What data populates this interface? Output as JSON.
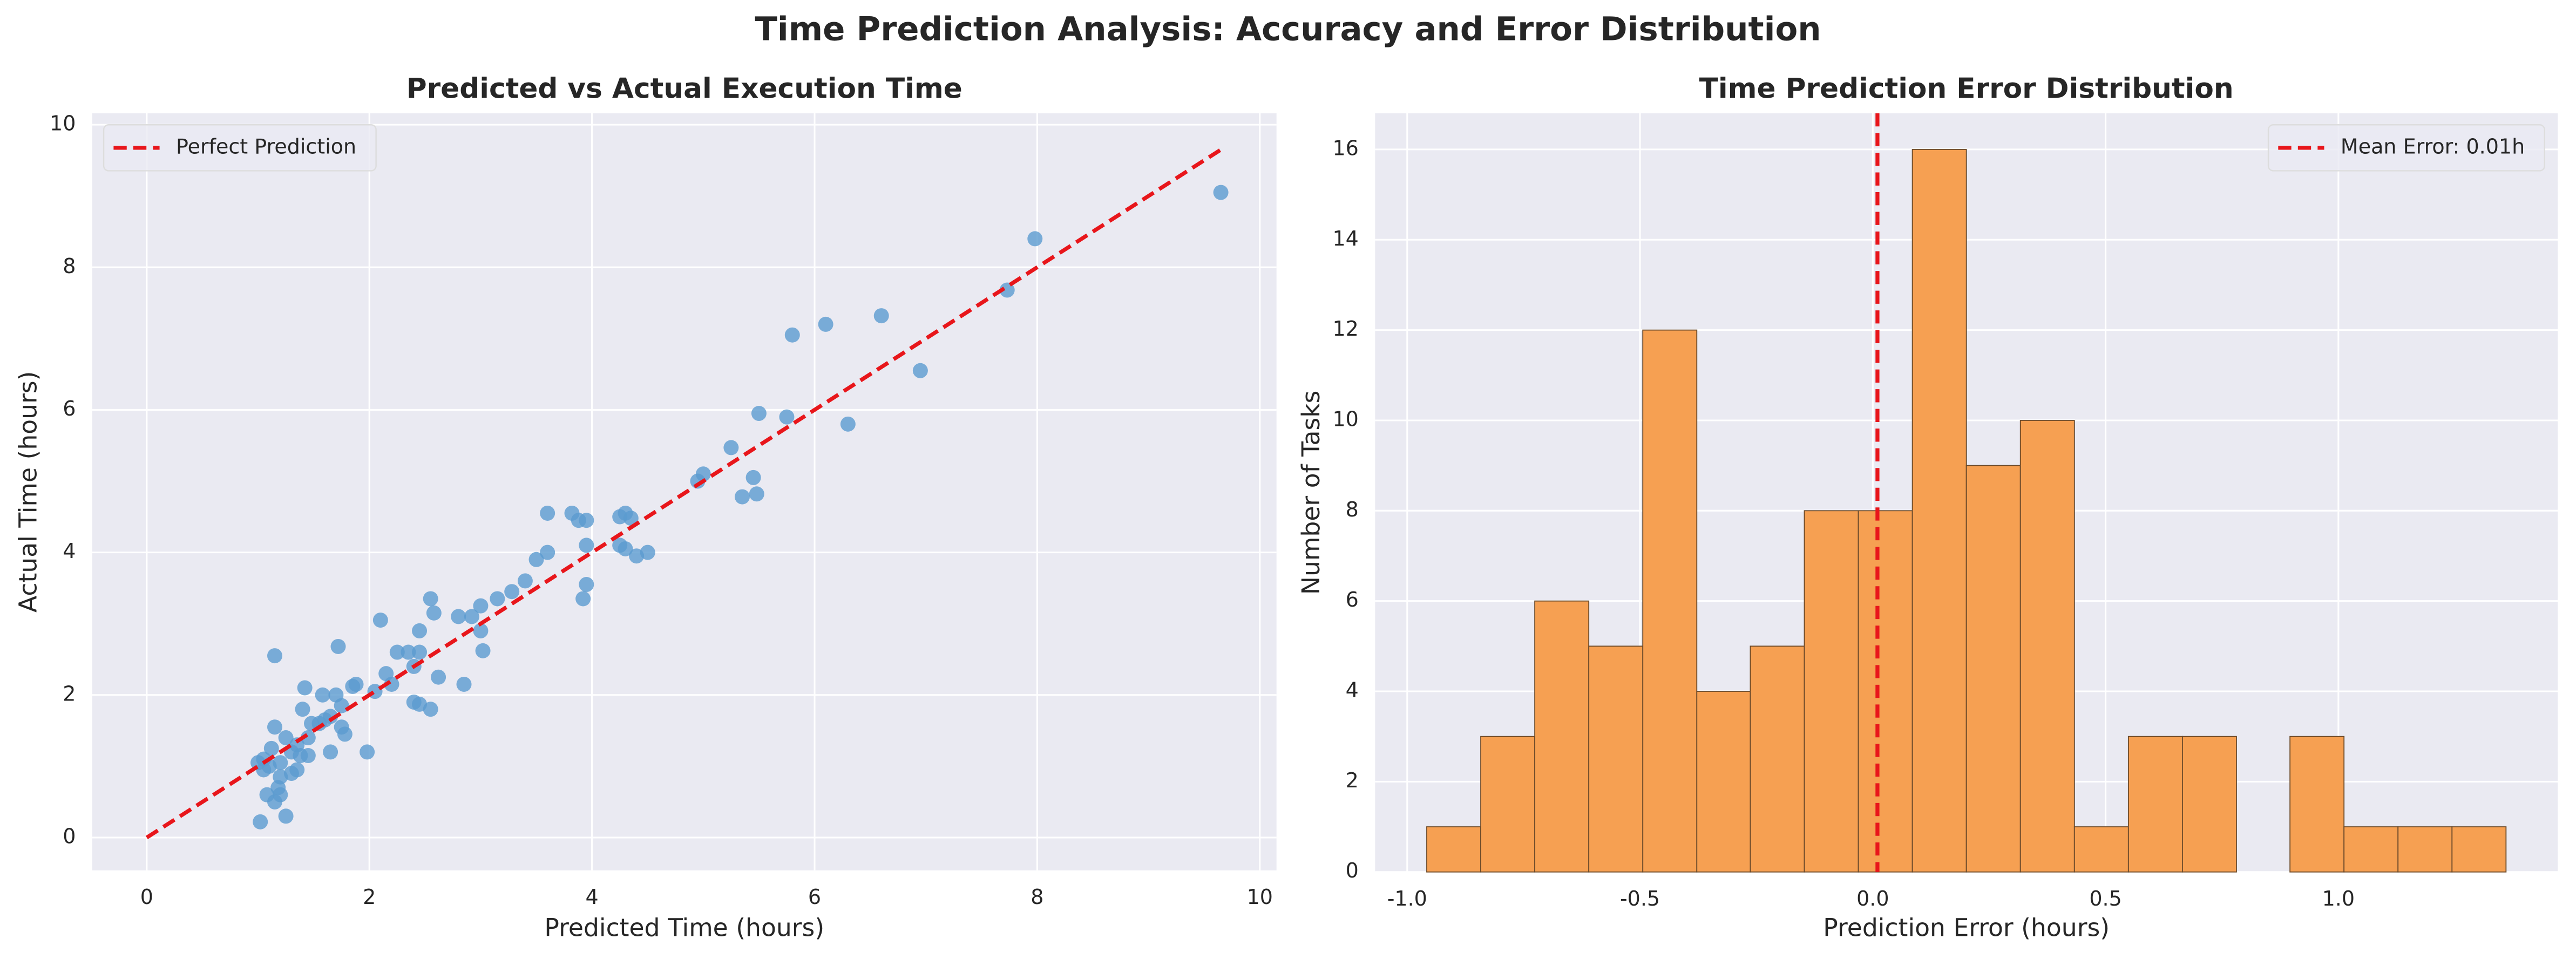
{
  "title": "Time Prediction Analysis: Accuracy and Error Distribution",
  "chart_data": [
    {
      "type": "scatter",
      "title": "Predicted vs Actual Execution Time",
      "xlabel": "Predicted Time (hours)",
      "ylabel": "Actual Time (hours)",
      "x": [
        9.65,
        7.98,
        7.73,
        6.6,
        6.1,
        5.8,
        6.95,
        6.3,
        5.75,
        5.5,
        5.25,
        5.0,
        4.95,
        5.45,
        5.35,
        5.48,
        3.6,
        3.82,
        3.88,
        3.95,
        4.25,
        4.3,
        4.35,
        4.5,
        4.4,
        4.25,
        4.3,
        3.95,
        3.6,
        3.5,
        3.4,
        3.28,
        3.15,
        3.95,
        3.92,
        3.0,
        2.92,
        2.8,
        3.0,
        3.02,
        2.85,
        2.55,
        2.58,
        2.45,
        2.35,
        2.4,
        2.45,
        2.25,
        2.1,
        2.15,
        2.2,
        2.05,
        2.4,
        2.45,
        2.55,
        2.62,
        1.98,
        1.88,
        1.85,
        1.72,
        1.75,
        1.7,
        1.65,
        1.75,
        1.78,
        1.6,
        1.55,
        1.65,
        1.58,
        1.48,
        1.42,
        1.4,
        1.45,
        1.38,
        1.45,
        1.3,
        1.35,
        1.3,
        1.25,
        1.2,
        1.18,
        1.2,
        1.25,
        1.15,
        1.15,
        1.12,
        1.1,
        1.05,
        1.05,
        1.0,
        1.08,
        1.15,
        1.02,
        1.2,
        1.35
      ],
      "values": [
        9.05,
        8.4,
        7.68,
        7.32,
        7.2,
        7.05,
        6.55,
        5.8,
        5.9,
        5.95,
        5.47,
        5.1,
        5.0,
        5.05,
        4.78,
        4.82,
        4.55,
        4.55,
        4.45,
        4.45,
        4.5,
        4.55,
        4.48,
        4.0,
        3.95,
        4.1,
        4.05,
        4.1,
        4.0,
        3.9,
        3.6,
        3.45,
        3.35,
        3.55,
        3.35,
        3.25,
        3.1,
        3.1,
        2.9,
        2.62,
        2.15,
        3.35,
        3.15,
        2.9,
        2.6,
        2.4,
        2.6,
        2.6,
        3.05,
        2.3,
        2.15,
        2.05,
        1.9,
        1.87,
        1.8,
        2.25,
        1.2,
        2.15,
        2.12,
        2.68,
        1.85,
        2.0,
        1.7,
        1.55,
        1.45,
        1.65,
        1.6,
        1.2,
        2.0,
        1.6,
        2.1,
        1.8,
        1.4,
        1.15,
        1.15,
        1.2,
        0.95,
        0.9,
        1.4,
        0.85,
        0.7,
        0.6,
        0.3,
        1.55,
        2.55,
        1.25,
        1.0,
        1.1,
        0.95,
        1.05,
        0.6,
        0.5,
        0.22,
        1.05,
        1.3
      ],
      "color": "#5b9bd0",
      "xlim": [
        -0.49,
        10.15
      ],
      "ylim": [
        -0.46,
        10.16
      ],
      "xticks": [
        0,
        2,
        4,
        6,
        8,
        10
      ],
      "yticks": [
        0,
        2,
        4,
        6,
        8,
        10
      ],
      "grid": true,
      "legend": "upper left",
      "reference_line": {
        "name": "Perfect Prediction",
        "x": [
          0,
          9.65
        ],
        "values": [
          0,
          9.65
        ],
        "color": "#e8161b"
      }
    },
    {
      "type": "histogram",
      "title": "Time Prediction Error Distribution",
      "xlabel": "Prediction Error (hours)",
      "ylabel": "Number of Tasks",
      "bins": [
        -0.958,
        -0.842,
        -0.726,
        -0.61,
        -0.494,
        -0.378,
        -0.263,
        -0.147,
        -0.031,
        0.085,
        0.201,
        0.317,
        0.433,
        0.549,
        0.665,
        0.781,
        0.896,
        1.012,
        1.128,
        1.244,
        1.36
      ],
      "values": [
        1,
        3,
        6,
        5,
        12,
        4,
        5,
        8,
        8,
        16,
        9,
        10,
        1,
        3,
        3,
        0,
        3,
        1,
        1,
        1
      ],
      "color": "#f6a052",
      "edgecolor": "#6b4a2a",
      "xlim": [
        -1.069,
        1.471
      ],
      "ylim": [
        0,
        16.8
      ],
      "xticks": [
        {
          "value": -1.0,
          "label": "-1.0"
        },
        {
          "value": -0.5,
          "label": "-0.5"
        },
        {
          "value": 0.0,
          "label": "0.0"
        },
        {
          "value": 0.5,
          "label": "0.5"
        },
        {
          "value": 1.0,
          "label": "1.0"
        }
      ],
      "yticks": [
        0,
        2,
        4,
        6,
        8,
        10,
        12,
        14,
        16
      ],
      "grid": true,
      "legend": "upper right",
      "vline": {
        "name": "Mean Error: 0.01h",
        "value": 0.01,
        "color": "#e8161b"
      }
    }
  ]
}
